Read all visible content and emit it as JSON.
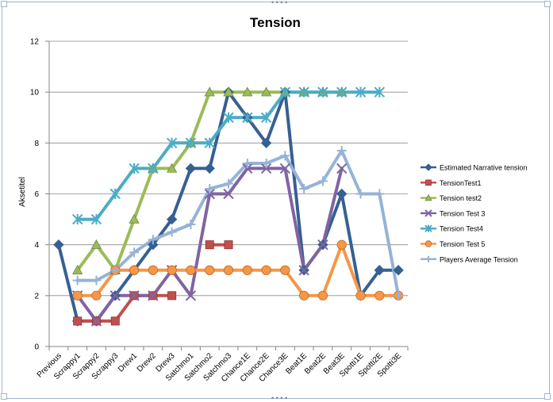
{
  "chart_data": {
    "type": "line",
    "title": "Tension",
    "xlabel": "",
    "ylabel": "Aksetitel",
    "ylim": [
      0,
      12
    ],
    "yticks": [
      0,
      2,
      4,
      6,
      8,
      10,
      12
    ],
    "grid": true,
    "legend_position": "right",
    "categories": [
      "Previous",
      "Scrappy1",
      "Scrappy2",
      "Scrappy3",
      "Drew1",
      "Drew2",
      "Drew3",
      "Satchmo1",
      "Satchmo2",
      "Satchmo3",
      "Chance1E",
      "Chance2E",
      "Chance3E",
      "Beat1E",
      "Beat2E",
      "Beat3E",
      "Spotti1E",
      "Spotti2E",
      "Spotti3E"
    ],
    "series": [
      {
        "name": "Estimated Narrative tension",
        "color": "#376092",
        "marker": "diamond",
        "values": [
          4,
          1,
          1,
          2,
          3,
          4,
          5,
          7,
          7,
          10,
          9,
          8,
          10,
          3,
          4,
          6,
          2,
          3,
          3
        ]
      },
      {
        "name": "TensionTest1",
        "color": "#c0504d",
        "marker": "square",
        "values": [
          null,
          1,
          1,
          1,
          2,
          2,
          2,
          null,
          4,
          4,
          null,
          null,
          null,
          null,
          null,
          null,
          null,
          null,
          null
        ]
      },
      {
        "name": "Tension test2",
        "color": "#9bbb59",
        "marker": "triangle",
        "values": [
          null,
          3,
          4,
          3,
          5,
          7,
          7,
          8,
          10,
          10,
          10,
          10,
          10,
          10,
          10,
          10,
          null,
          null,
          null
        ]
      },
      {
        "name": "Tension Test 3",
        "color": "#8064a2",
        "marker": "x",
        "values": [
          null,
          2,
          1,
          2,
          2,
          2,
          3,
          2,
          6,
          6,
          7,
          7,
          7,
          3,
          4,
          7,
          null,
          null,
          null
        ]
      },
      {
        "name": "Tension Test4",
        "color": "#4bacc6",
        "marker": "star",
        "values": [
          null,
          5,
          5,
          6,
          7,
          7,
          8,
          8,
          8,
          9,
          9,
          9,
          10,
          10,
          10,
          10,
          10,
          10,
          null
        ]
      },
      {
        "name": "Tension Test 5",
        "color": "#f79646",
        "marker": "circle",
        "values": [
          null,
          2,
          2,
          3,
          3,
          3,
          3,
          3,
          3,
          3,
          3,
          3,
          3,
          2,
          2,
          4,
          2,
          2,
          2
        ]
      },
      {
        "name": "Players Average Tension",
        "color": "#95b3d7",
        "marker": "plus",
        "values": [
          null,
          2.6,
          2.6,
          3,
          3.7,
          4.2,
          4.5,
          4.8,
          6.2,
          6.4,
          7.2,
          7.2,
          7.5,
          6.2,
          6.5,
          7.7,
          6,
          6,
          2
        ]
      }
    ]
  }
}
